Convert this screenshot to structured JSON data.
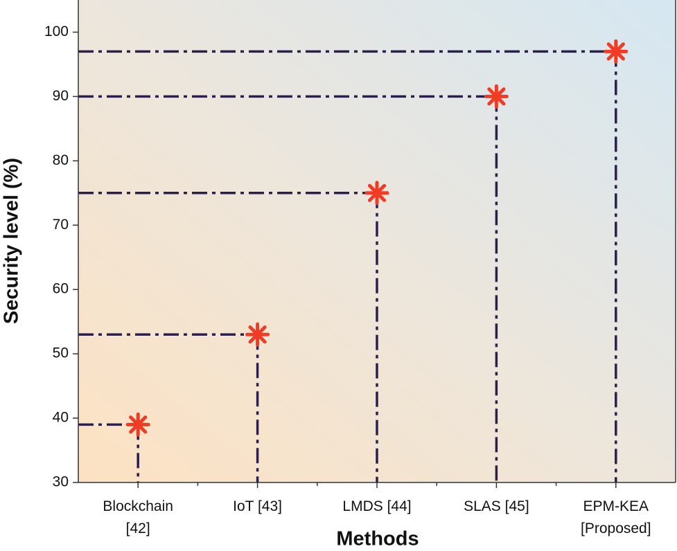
{
  "chart_data": {
    "type": "scatter",
    "x_label": "Methods",
    "y_label": "Security level (%)",
    "categories": [
      "Blockchain\n[42]",
      "IoT [43]",
      "LMDS [44]",
      "SLAS [45]",
      "EPM-KEA\n[Proposed]"
    ],
    "values": [
      39,
      53,
      75,
      90,
      97
    ],
    "color": "#f03c24",
    "line_color": "#2b1f4d",
    "ylim": [
      30,
      105
    ],
    "yticks": [
      30,
      40,
      50,
      60,
      70,
      80,
      90,
      100
    ],
    "grid": false
  }
}
